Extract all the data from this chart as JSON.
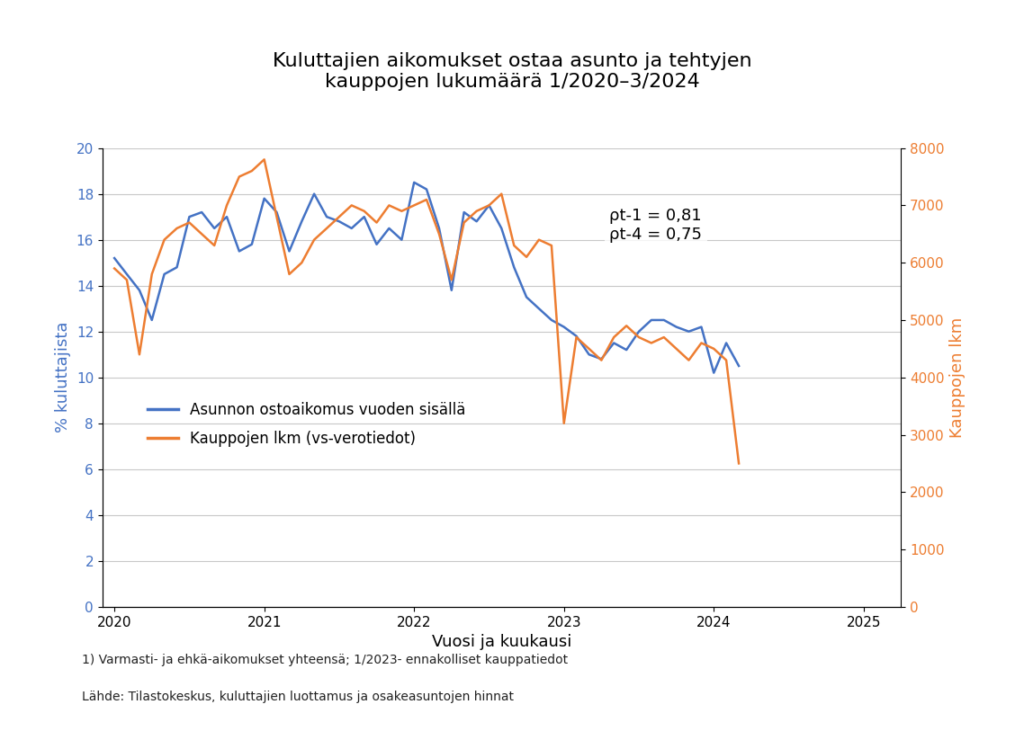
{
  "title": "Kuluttajien aikomukset ostaa asunto ja tehtyjen\nkauppojen lukumäärä 1/2020–3/2024",
  "xlabel": "Vuosi ja kuukausi",
  "ylabel_left": "% kuluttajista",
  "ylabel_right": "Kauppojen lkm",
  "footnote_line1": "1) Varmasti- ja ehkä-aikomukset yhteensä; 1/2023- ennakolliset kauppatiedot",
  "footnote_line2": "Lähde: Tilastokeskus, kuluttajien luottamus ja osakeasuntojen hinnat",
  "annotation_rho1": "ρt-1 = 0,81",
  "annotation_rho2": "ρt-4 = 0,75",
  "legend_blue": "Asunnon ostoaikomus vuoden sisällä",
  "legend_orange": "Kauppojen lkm (vs-verotiedot)",
  "blue_color": "#4472C4",
  "orange_color": "#ED7D31",
  "background_color": "#FFFFFF",
  "ylim_left": [
    0,
    20
  ],
  "ylim_right": [
    0,
    8000
  ],
  "yticks_left": [
    0,
    2,
    4,
    6,
    8,
    10,
    12,
    14,
    16,
    18,
    20
  ],
  "yticks_right": [
    0,
    1000,
    2000,
    3000,
    4000,
    5000,
    6000,
    7000,
    8000
  ],
  "xlim": [
    2019.92,
    2025.25
  ],
  "xtick_positions": [
    2020,
    2021,
    2022,
    2023,
    2024,
    2025
  ],
  "xtick_labels": [
    "2020",
    "2021",
    "2022",
    "2023",
    "2024",
    "2025"
  ],
  "blue_x": [
    2020.0,
    2020.083,
    2020.167,
    2020.25,
    2020.333,
    2020.417,
    2020.5,
    2020.583,
    2020.667,
    2020.75,
    2020.833,
    2020.917,
    2021.0,
    2021.083,
    2021.167,
    2021.25,
    2021.333,
    2021.417,
    2021.5,
    2021.583,
    2021.667,
    2021.75,
    2021.833,
    2021.917,
    2022.0,
    2022.083,
    2022.167,
    2022.25,
    2022.333,
    2022.417,
    2022.5,
    2022.583,
    2022.667,
    2022.75,
    2022.833,
    2022.917,
    2023.0,
    2023.083,
    2023.167,
    2023.25,
    2023.333,
    2023.417,
    2023.5,
    2023.583,
    2023.667,
    2023.75,
    2023.833,
    2023.917,
    2024.0,
    2024.083,
    2024.167
  ],
  "blue_y": [
    15.2,
    14.5,
    13.8,
    12.5,
    14.5,
    14.8,
    17.0,
    17.2,
    16.5,
    17.0,
    15.5,
    15.8,
    17.8,
    17.2,
    15.5,
    16.8,
    18.0,
    17.0,
    16.8,
    16.5,
    17.0,
    15.8,
    16.5,
    16.0,
    18.5,
    18.2,
    16.5,
    13.8,
    17.2,
    16.8,
    17.5,
    16.5,
    14.8,
    13.5,
    13.0,
    12.5,
    12.2,
    11.8,
    11.0,
    10.8,
    11.5,
    11.2,
    12.0,
    12.5,
    12.5,
    12.2,
    12.0,
    12.2,
    10.2,
    11.5,
    10.5
  ],
  "orange_x": [
    2020.0,
    2020.083,
    2020.167,
    2020.25,
    2020.333,
    2020.417,
    2020.5,
    2020.583,
    2020.667,
    2020.75,
    2020.833,
    2020.917,
    2021.0,
    2021.083,
    2021.167,
    2021.25,
    2021.333,
    2021.417,
    2021.5,
    2021.583,
    2021.667,
    2021.75,
    2021.833,
    2021.917,
    2022.0,
    2022.083,
    2022.167,
    2022.25,
    2022.333,
    2022.417,
    2022.5,
    2022.583,
    2022.667,
    2022.75,
    2022.833,
    2022.917,
    2023.0,
    2023.083,
    2023.167,
    2023.25,
    2023.333,
    2023.417,
    2023.5,
    2023.583,
    2023.667,
    2023.75,
    2023.833,
    2023.917,
    2024.0,
    2024.083,
    2024.167
  ],
  "orange_y": [
    5900,
    5700,
    4400,
    5800,
    6400,
    6600,
    6700,
    6500,
    6300,
    7000,
    7500,
    7600,
    7800,
    6800,
    5800,
    6000,
    6400,
    6600,
    6800,
    7000,
    6900,
    6700,
    7000,
    6900,
    7000,
    7100,
    6500,
    5700,
    6700,
    6900,
    7000,
    7200,
    6300,
    6100,
    6400,
    6300,
    3200,
    4700,
    4500,
    4300,
    4700,
    4900,
    4700,
    4600,
    4700,
    4500,
    4300,
    4600,
    4500,
    4300,
    2500
  ]
}
